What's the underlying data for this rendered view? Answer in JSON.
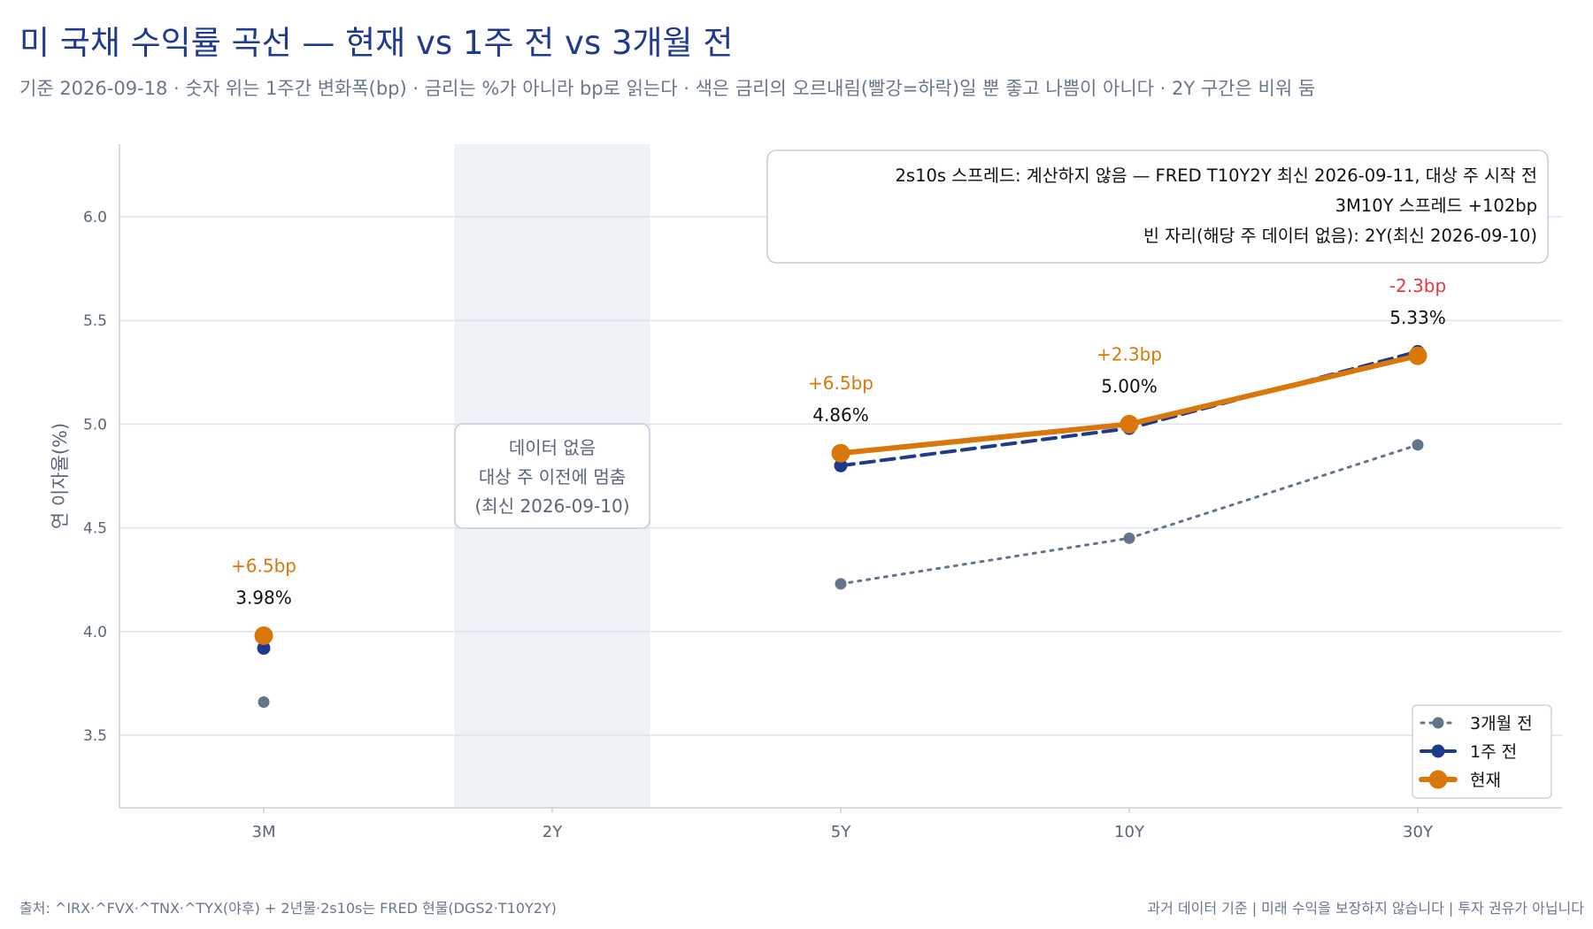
{
  "title": "미 국채 수익률 곡선 — 현재 vs 1주 전 vs 3개월 전",
  "subtitle": "기준 2026-09-18 · 숫자 위는 1주간 변화폭(bp) · 금리는 %가 아니라 bp로 읽는다 · 색은 금리의 오르내림(빨강=하락)일 뿐 좋고 나쁨이 아니다 · 2Y 구간은 비워 둠",
  "footer": {
    "source": "출처: ^IRX·^FVX·^TNX·^TYX(야후) + 2년물·2s10s는 FRED 현물(DGS2·T10Y2Y)",
    "disclaimer": "과거 데이터 기준 | 미래 수익을 보장하지 않습니다 | 투자 권유가 아닙니다"
  },
  "info_box": {
    "lines": [
      "2s10s 스프레드: 계산하지 않음 — FRED T10Y2Y 최신 2026-09-11, 대상 주 시작 전",
      "3M10Y 스프레드 +102bp",
      "빈 자리(해당 주 데이터 없음): 2Y(최신 2026-09-10)"
    ]
  },
  "no_data_box": {
    "lines": [
      "데이터 없음",
      "대상 주 이전에 멈춤",
      "(최신 2026-09-10)"
    ]
  },
  "colors": {
    "current": "#d9770a",
    "week_ago": "#1e3a8a",
    "three_months_ago": "#64748b",
    "up": "#d9770a",
    "down": "#e0393e",
    "grid": "#dde3ec",
    "axis_text": "#5b6578",
    "shade": "#eef2f7"
  },
  "chart_data": {
    "type": "line",
    "categories": [
      "3M",
      "2Y",
      "5Y",
      "10Y",
      "30Y"
    ],
    "ylabel": "연 이자율(%)",
    "ylim": [
      3.15,
      6.35
    ],
    "yticks": [
      3.5,
      4.0,
      4.5,
      5.0,
      5.5,
      6.0
    ],
    "grid": true,
    "legend_position": "bottom-right",
    "no_data_category": "2Y",
    "series": [
      {
        "name": "3개월 전",
        "style": "dotted",
        "values": [
          3.66,
          null,
          4.23,
          4.45,
          4.9
        ]
      },
      {
        "name": "1주 전",
        "style": "dashed",
        "values": [
          3.92,
          null,
          4.8,
          4.98,
          5.35
        ]
      },
      {
        "name": "현재",
        "style": "solid",
        "values": [
          3.98,
          null,
          4.86,
          5.0,
          5.33
        ]
      }
    ],
    "value_labels": [
      "3.98%",
      "",
      "4.86%",
      "5.00%",
      "5.33%"
    ],
    "change_labels": [
      "+6.5bp",
      "",
      "+6.5bp",
      "+2.3bp",
      "-2.3bp"
    ],
    "change_bp": [
      6.5,
      null,
      6.5,
      2.3,
      -2.3
    ]
  }
}
